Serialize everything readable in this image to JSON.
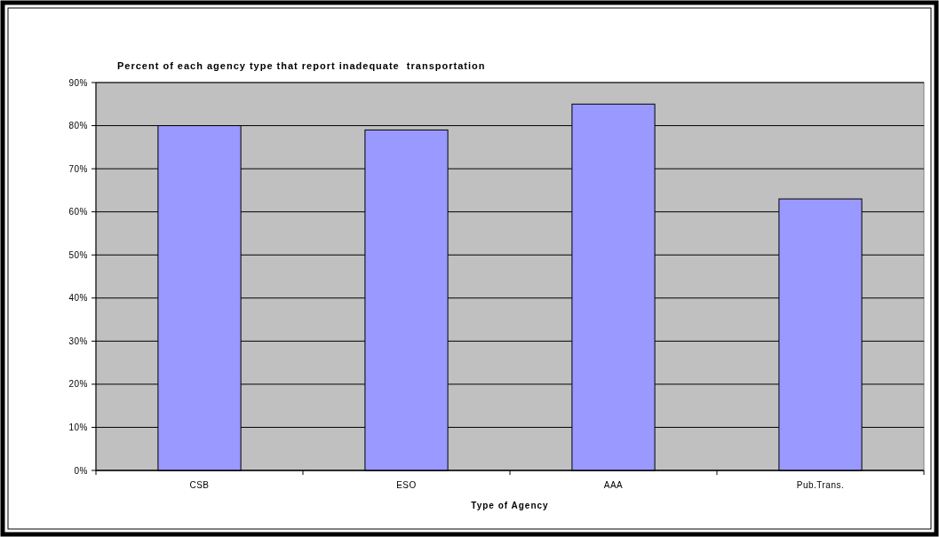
{
  "chart_data": {
    "type": "bar",
    "title": "Percent of each agency type that report inadequate  transportation",
    "xlabel": "Type of Agency",
    "categories": [
      "CSB",
      "ESO",
      "AAA",
      "Pub.Trans."
    ],
    "values": [
      80,
      79,
      85,
      63
    ],
    "color": "#9999ff",
    "ylim": [
      0,
      90
    ],
    "yticks": [
      {
        "value": 0,
        "label": "0%"
      },
      {
        "value": 10,
        "label": "10%"
      },
      {
        "value": 20,
        "label": "20%"
      },
      {
        "value": 30,
        "label": "30%"
      },
      {
        "value": 40,
        "label": "40%"
      },
      {
        "value": 50,
        "label": "50%"
      },
      {
        "value": 60,
        "label": "60%"
      },
      {
        "value": 70,
        "label": "70%"
      },
      {
        "value": 80,
        "label": "80%"
      },
      {
        "value": 90,
        "label": "90%"
      }
    ],
    "grid": "y"
  }
}
